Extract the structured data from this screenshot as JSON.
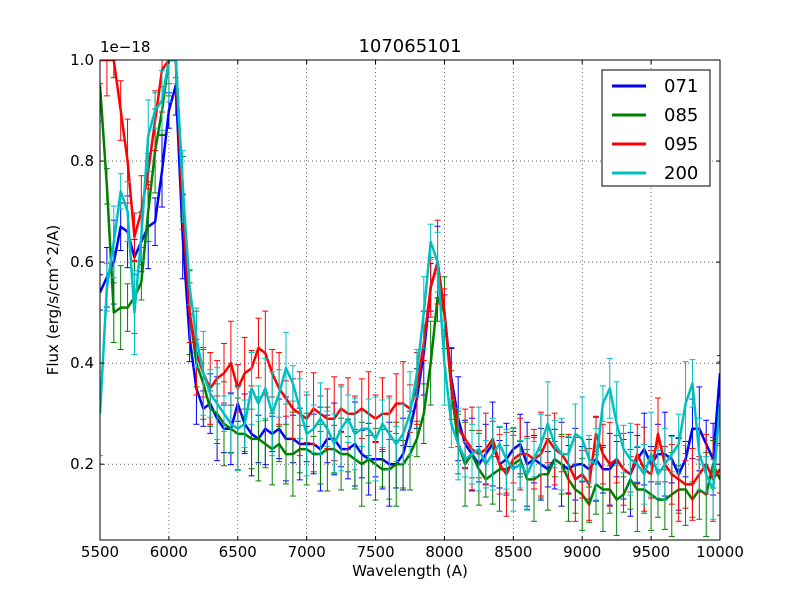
{
  "chart_data": {
    "type": "line",
    "title": "107065101",
    "xlabel": "Wavelength (A)",
    "ylabel": "Flux (erg/s/cm^2/A)",
    "offset_label": "1e−18",
    "xlim": [
      5500,
      10000
    ],
    "ylim": [
      0.05,
      1.0
    ],
    "grid": true,
    "legend_location": "top-right",
    "x_ticks": [
      5500,
      6000,
      6500,
      7000,
      7500,
      8000,
      8500,
      9000,
      9500,
      10000
    ],
    "y_ticks": [
      0.2,
      0.4,
      0.6,
      0.8,
      1.0
    ],
    "x_tick_labels": [
      "5500",
      "6000",
      "6500",
      "7000",
      "7500",
      "8000",
      "8500",
      "9000",
      "9500",
      "10000"
    ],
    "y_tick_labels": [
      "0.2",
      "0.4",
      "0.6",
      "0.8",
      "1.0"
    ],
    "series": [
      {
        "name": "071",
        "color": "#0000ff",
        "x": [
          5500,
          5550,
          5600,
          5650,
          5700,
          5750,
          5800,
          5850,
          5900,
          5950,
          6000,
          6050,
          6100,
          6150,
          6200,
          6250,
          6300,
          6350,
          6400,
          6450,
          6500,
          6550,
          6600,
          6650,
          6700,
          6750,
          6800,
          6850,
          6900,
          6950,
          7000,
          7050,
          7100,
          7150,
          7200,
          7250,
          7300,
          7350,
          7400,
          7450,
          7500,
          7550,
          7600,
          7650,
          7700,
          7750,
          7800,
          7850,
          7900,
          7950,
          8000,
          8050,
          8100,
          8150,
          8200,
          8250,
          8300,
          8350,
          8400,
          8450,
          8500,
          8550,
          8600,
          8650,
          8700,
          8750,
          8800,
          8850,
          8900,
          8950,
          9000,
          9050,
          9100,
          9150,
          9200,
          9250,
          9300,
          9350,
          9400,
          9450,
          9500,
          9550,
          9600,
          9650,
          9700,
          9750,
          9800,
          9850,
          9900,
          9950,
          10000
        ],
        "y": [
          0.54,
          0.57,
          0.6,
          0.67,
          0.66,
          0.61,
          0.64,
          0.67,
          0.68,
          0.78,
          0.9,
          0.95,
          0.65,
          0.45,
          0.35,
          0.31,
          0.32,
          0.29,
          0.27,
          0.27,
          0.32,
          0.28,
          0.26,
          0.25,
          0.27,
          0.26,
          0.27,
          0.25,
          0.25,
          0.24,
          0.24,
          0.24,
          0.23,
          0.25,
          0.25,
          0.23,
          0.23,
          0.24,
          0.22,
          0.21,
          0.21,
          0.21,
          0.2,
          0.2,
          0.22,
          0.27,
          0.33,
          0.42,
          0.55,
          0.6,
          0.5,
          0.37,
          0.29,
          0.24,
          0.22,
          0.2,
          0.22,
          0.24,
          0.2,
          0.21,
          0.23,
          0.24,
          0.2,
          0.21,
          0.2,
          0.19,
          0.21,
          0.2,
          0.19,
          0.2,
          0.2,
          0.19,
          0.21,
          0.19,
          0.19,
          0.21,
          0.19,
          0.18,
          0.21,
          0.23,
          0.2,
          0.22,
          0.22,
          0.21,
          0.18,
          0.21,
          0.27,
          0.27,
          0.24,
          0.21,
          0.38
        ]
      },
      {
        "name": "085",
        "color": "#008000",
        "x": [
          5500,
          5550,
          5600,
          5650,
          5700,
          5750,
          5800,
          5850,
          5900,
          5950,
          6000,
          6050,
          6100,
          6150,
          6200,
          6250,
          6300,
          6350,
          6400,
          6450,
          6500,
          6550,
          6600,
          6650,
          6700,
          6750,
          6800,
          6850,
          6900,
          6950,
          7000,
          7050,
          7100,
          7150,
          7200,
          7250,
          7300,
          7350,
          7400,
          7450,
          7500,
          7550,
          7600,
          7650,
          7700,
          7750,
          7800,
          7850,
          7900,
          7950,
          8000,
          8050,
          8100,
          8150,
          8200,
          8250,
          8300,
          8350,
          8400,
          8450,
          8500,
          8550,
          8600,
          8650,
          8700,
          8750,
          8800,
          8850,
          8900,
          8950,
          9000,
          9050,
          9100,
          9150,
          9200,
          9250,
          9300,
          9350,
          9400,
          9450,
          9500,
          9550,
          9600,
          9650,
          9700,
          9750,
          9800,
          9850,
          9900,
          9950,
          10000
        ],
        "y": [
          0.95,
          0.75,
          0.5,
          0.51,
          0.51,
          0.53,
          0.56,
          0.7,
          0.82,
          0.9,
          1.0,
          1.0,
          0.75,
          0.5,
          0.4,
          0.36,
          0.31,
          0.3,
          0.28,
          0.27,
          0.26,
          0.26,
          0.25,
          0.25,
          0.24,
          0.23,
          0.24,
          0.22,
          0.22,
          0.23,
          0.23,
          0.22,
          0.22,
          0.23,
          0.23,
          0.22,
          0.22,
          0.21,
          0.2,
          0.21,
          0.2,
          0.19,
          0.19,
          0.2,
          0.2,
          0.22,
          0.25,
          0.3,
          0.4,
          0.53,
          0.5,
          0.35,
          0.24,
          0.2,
          0.22,
          0.19,
          0.17,
          0.18,
          0.19,
          0.19,
          0.2,
          0.21,
          0.17,
          0.17,
          0.18,
          0.18,
          0.21,
          0.2,
          0.17,
          0.15,
          0.14,
          0.12,
          0.16,
          0.15,
          0.15,
          0.13,
          0.14,
          0.17,
          0.15,
          0.15,
          0.14,
          0.13,
          0.13,
          0.14,
          0.15,
          0.15,
          0.13,
          0.15,
          0.14,
          0.2,
          0.17
        ]
      },
      {
        "name": "095",
        "color": "#ff0000",
        "x": [
          5500,
          5550,
          5600,
          5650,
          5700,
          5750,
          5800,
          5850,
          5900,
          5950,
          6000,
          6050,
          6100,
          6150,
          6200,
          6250,
          6300,
          6350,
          6400,
          6450,
          6500,
          6550,
          6600,
          6650,
          6700,
          6750,
          6800,
          6850,
          6900,
          6950,
          7000,
          7050,
          7100,
          7150,
          7200,
          7250,
          7300,
          7350,
          7400,
          7450,
          7500,
          7550,
          7600,
          7650,
          7700,
          7750,
          7800,
          7850,
          7900,
          7950,
          8000,
          8050,
          8100,
          8150,
          8200,
          8250,
          8300,
          8350,
          8400,
          8450,
          8500,
          8550,
          8600,
          8650,
          8700,
          8750,
          8800,
          8850,
          8900,
          8950,
          9000,
          9050,
          9100,
          9150,
          9200,
          9250,
          9300,
          9350,
          9400,
          9450,
          9500,
          9550,
          9600,
          9650,
          9700,
          9750,
          9800,
          9850,
          9900,
          9950,
          10000
        ],
        "y": [
          1.0,
          1.0,
          1.0,
          0.9,
          0.8,
          0.65,
          0.7,
          0.78,
          0.88,
          0.98,
          1.0,
          1.0,
          0.7,
          0.5,
          0.42,
          0.38,
          0.35,
          0.37,
          0.38,
          0.4,
          0.35,
          0.38,
          0.39,
          0.43,
          0.42,
          0.38,
          0.35,
          0.33,
          0.31,
          0.3,
          0.29,
          0.31,
          0.3,
          0.29,
          0.29,
          0.31,
          0.3,
          0.3,
          0.31,
          0.3,
          0.29,
          0.3,
          0.3,
          0.32,
          0.32,
          0.31,
          0.35,
          0.44,
          0.55,
          0.6,
          0.5,
          0.36,
          0.27,
          0.25,
          0.23,
          0.22,
          0.23,
          0.25,
          0.2,
          0.18,
          0.21,
          0.22,
          0.22,
          0.21,
          0.22,
          0.25,
          0.23,
          0.22,
          0.2,
          0.17,
          0.18,
          0.16,
          0.26,
          0.22,
          0.2,
          0.21,
          0.19,
          0.18,
          0.22,
          0.19,
          0.18,
          0.26,
          0.2,
          0.18,
          0.17,
          0.16,
          0.16,
          0.18,
          0.2,
          0.17,
          0.19
        ]
      },
      {
        "name": "200",
        "color": "#00bfbf",
        "x": [
          5500,
          5550,
          5600,
          5650,
          5700,
          5750,
          5800,
          5850,
          5900,
          5950,
          6000,
          6050,
          6100,
          6150,
          6200,
          6250,
          6300,
          6350,
          6400,
          6450,
          6500,
          6550,
          6600,
          6650,
          6700,
          6750,
          6800,
          6850,
          6900,
          6950,
          7000,
          7050,
          7100,
          7150,
          7200,
          7250,
          7300,
          7350,
          7400,
          7450,
          7500,
          7550,
          7600,
          7650,
          7700,
          7750,
          7800,
          7850,
          7900,
          7950,
          8000,
          8050,
          8100,
          8150,
          8200,
          8250,
          8300,
          8350,
          8400,
          8450,
          8500,
          8550,
          8600,
          8650,
          8700,
          8750,
          8800,
          8850,
          8900,
          8950,
          9000,
          9050,
          9100,
          9150,
          9200,
          9250,
          9300,
          9350,
          9400,
          9450,
          9500,
          9550,
          9600,
          9650,
          9700,
          9750,
          9800,
          9850,
          9900,
          9950,
          10000
        ],
        "y": [
          0.3,
          0.55,
          0.64,
          0.74,
          0.7,
          0.5,
          0.65,
          0.85,
          0.9,
          0.92,
          1.0,
          1.0,
          0.75,
          0.55,
          0.45,
          0.38,
          0.34,
          0.32,
          0.3,
          0.28,
          0.27,
          0.28,
          0.35,
          0.32,
          0.35,
          0.3,
          0.34,
          0.39,
          0.36,
          0.31,
          0.26,
          0.27,
          0.29,
          0.27,
          0.24,
          0.27,
          0.29,
          0.26,
          0.27,
          0.27,
          0.25,
          0.28,
          0.26,
          0.24,
          0.26,
          0.3,
          0.38,
          0.5,
          0.64,
          0.6,
          0.4,
          0.28,
          0.24,
          0.21,
          0.22,
          0.23,
          0.2,
          0.22,
          0.24,
          0.21,
          0.19,
          0.2,
          0.18,
          0.21,
          0.24,
          0.28,
          0.24,
          0.22,
          0.22,
          0.26,
          0.25,
          0.21,
          0.2,
          0.32,
          0.35,
          0.28,
          0.23,
          0.21,
          0.2,
          0.18,
          0.22,
          0.18,
          0.2,
          0.22,
          0.24,
          0.32,
          0.36,
          0.22,
          0.18,
          0.15,
          0.32
        ]
      }
    ]
  }
}
